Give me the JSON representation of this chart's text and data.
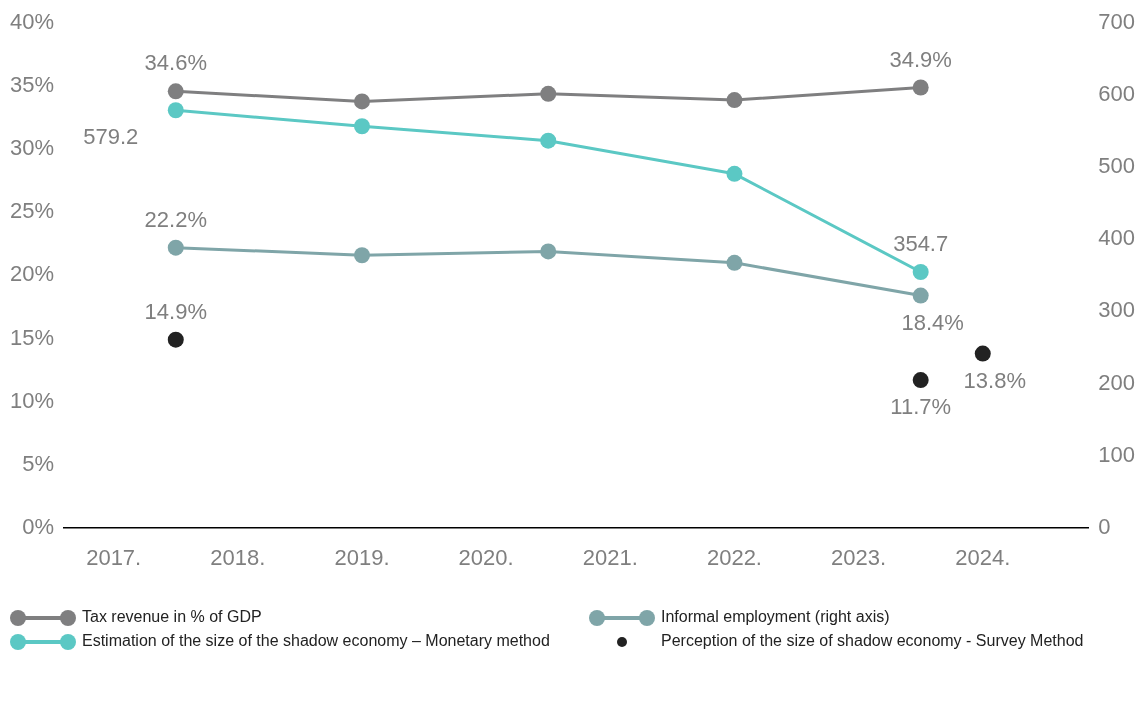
{
  "chart_data": {
    "type": "line",
    "xlim": [
      2016.6,
      2024.85
    ],
    "xticks": [
      {
        "value": 2017,
        "label": "2017."
      },
      {
        "value": 2018,
        "label": "2018."
      },
      {
        "value": 2019,
        "label": "2019."
      },
      {
        "value": 2020,
        "label": "2020."
      },
      {
        "value": 2021,
        "label": "2021."
      },
      {
        "value": 2022,
        "label": "2022."
      },
      {
        "value": 2023,
        "label": "2023."
      },
      {
        "value": 2024,
        "label": "2024."
      }
    ],
    "ylim": [
      0,
      40
    ],
    "yticks": [
      {
        "value": 0,
        "label": "0%"
      },
      {
        "value": 5,
        "label": "5%"
      },
      {
        "value": 10,
        "label": "10%"
      },
      {
        "value": 15,
        "label": "15%"
      },
      {
        "value": 20,
        "label": "20%"
      },
      {
        "value": 25,
        "label": "25%"
      },
      {
        "value": 30,
        "label": "30%"
      },
      {
        "value": 35,
        "label": "35%"
      },
      {
        "value": 40,
        "label": "40%"
      }
    ],
    "y2lim": [
      0,
      700
    ],
    "y2ticks": [
      0,
      100,
      200,
      300,
      400,
      500,
      600,
      700
    ],
    "grid": false,
    "legend": "bottom",
    "marker": "circle",
    "line_style": "solid",
    "series": [
      {
        "name": "Tax revenue in % of GDP",
        "color": "#7f7f80",
        "x": [
          2017.5,
          2019,
          2020.5,
          2022,
          2023.5
        ],
        "values": [
          34.6,
          33.8,
          34.4,
          33.9,
          34.9
        ],
        "value_labels": [
          "34.6%",
          null,
          null,
          null,
          "34.9%"
        ]
      },
      {
        "name": "Estimation of the size of the shadow economy – Monetary method",
        "axis": "y2",
        "color": "#5bc8c4",
        "x": [
          2017.5,
          2019,
          2020.5,
          2022,
          2023.5
        ],
        "values": [
          579.2,
          557,
          537,
          491,
          354.7
        ],
        "value_labels": [
          "579.2",
          null,
          null,
          null,
          "354.7"
        ]
      },
      {
        "name": "Informal employment (right axis)",
        "color": "#7fa5a8",
        "x": [
          2017.5,
          2019,
          2020.5,
          2022,
          2023.5
        ],
        "values": [
          22.2,
          21.6,
          21.9,
          21.0,
          18.4
        ],
        "value_labels": [
          "22.2%",
          null,
          null,
          null,
          "18.4%"
        ]
      },
      {
        "name": "Perception of the size of shadow economy - Survey Method",
        "type": "scatter",
        "color": "#222222",
        "x": [
          2017.5,
          2023.5,
          2024
        ],
        "values": [
          14.9,
          11.7,
          13.8
        ],
        "value_labels": [
          "14.9%",
          "11.7%",
          "13.8%"
        ]
      }
    ]
  }
}
